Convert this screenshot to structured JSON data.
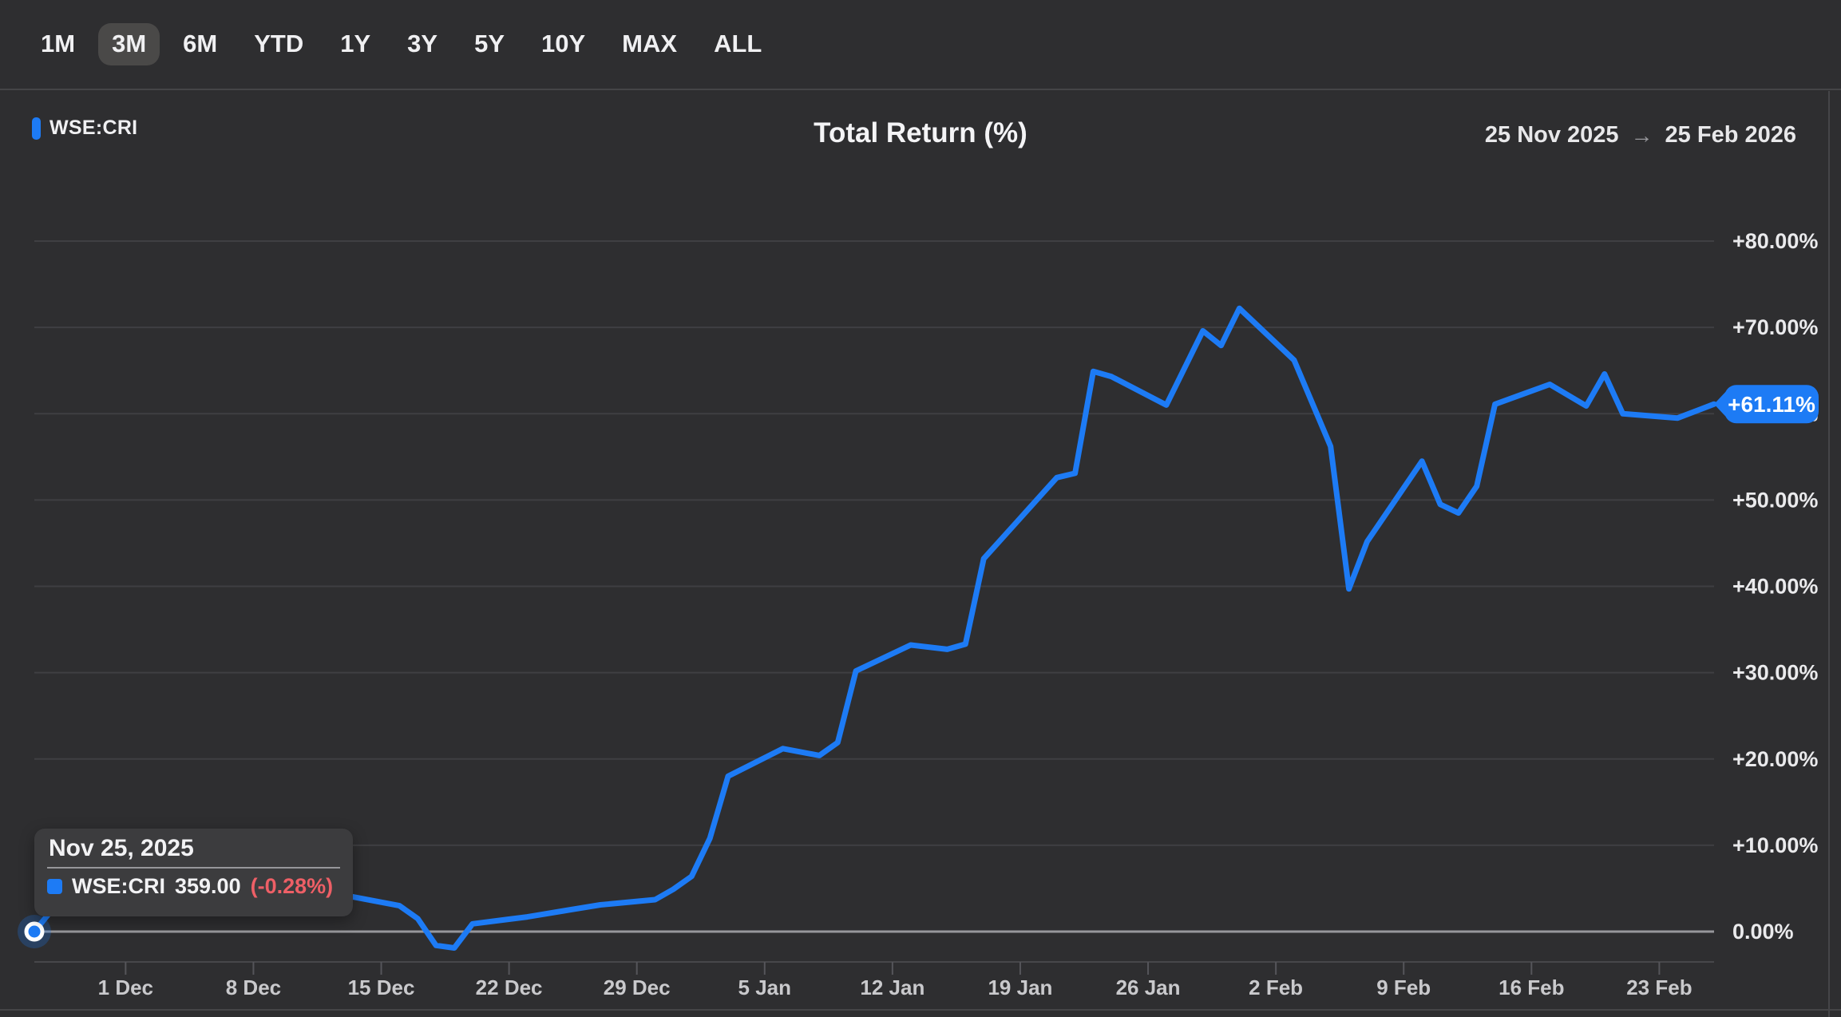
{
  "toolbar": {
    "ranges": [
      "1M",
      "3M",
      "6M",
      "YTD",
      "1Y",
      "3Y",
      "5Y",
      "10Y",
      "MAX",
      "ALL"
    ],
    "selected": "3M"
  },
  "header": {
    "legend_label": "WSE:CRI",
    "title": "Total Return (%)",
    "date_start": "25 Nov 2025",
    "date_end": "25 Feb 2026",
    "arrow_glyph": "→"
  },
  "tooltip": {
    "date": "Nov 25, 2025",
    "series": "WSE:CRI",
    "value": "359.00",
    "change": "(-0.28%)"
  },
  "badge": {
    "label": "+61.11%"
  },
  "colors": {
    "accent": "#1d7bf5",
    "negative": "#ee5f66",
    "grid": "#3f3f42",
    "zero_line": "#97979b",
    "axis": "#47474a"
  },
  "chart_data": {
    "type": "line",
    "title": "Total Return (%)",
    "series_name": "WSE:CRI",
    "x_start_date": "2025-11-25",
    "x_end_date": "2026-02-25",
    "last_value_label": "+61.11%",
    "grid": true,
    "legend_position": "top-left",
    "ylim": [
      -4,
      82
    ],
    "y_ticks": [
      {
        "value": 0,
        "label": "0.00%"
      },
      {
        "value": 10,
        "label": "+10.00%"
      },
      {
        "value": 20,
        "label": "+20.00%"
      },
      {
        "value": 30,
        "label": "+30.00%"
      },
      {
        "value": 40,
        "label": "+40.00%"
      },
      {
        "value": 50,
        "label": "+50.00%"
      },
      {
        "value": 60,
        "label": "+60.00%"
      },
      {
        "value": 70,
        "label": "+70.00%"
      },
      {
        "value": 80,
        "label": "+80.00%"
      }
    ],
    "x_ticks": [
      {
        "date": "2025-12-01",
        "label": "1 Dec"
      },
      {
        "date": "2025-12-08",
        "label": "8 Dec"
      },
      {
        "date": "2025-12-15",
        "label": "15 Dec"
      },
      {
        "date": "2025-12-22",
        "label": "22 Dec"
      },
      {
        "date": "2025-12-29",
        "label": "29 Dec"
      },
      {
        "date": "2026-01-05",
        "label": "5 Jan"
      },
      {
        "date": "2026-01-12",
        "label": "12 Jan"
      },
      {
        "date": "2026-01-19",
        "label": "19 Jan"
      },
      {
        "date": "2026-01-26",
        "label": "26 Jan"
      },
      {
        "date": "2026-02-02",
        "label": "2 Feb"
      },
      {
        "date": "2026-02-09",
        "label": "9 Feb"
      },
      {
        "date": "2026-02-16",
        "label": "16 Feb"
      },
      {
        "date": "2026-02-23",
        "label": "23 Feb"
      }
    ],
    "points": [
      [
        "2025-11-25",
        0.0
      ],
      [
        "2025-11-26",
        2.6
      ],
      [
        "2025-11-27",
        3.9
      ],
      [
        "2025-11-28",
        4.2
      ],
      [
        "2025-12-01",
        4.5
      ],
      [
        "2025-12-02",
        4.3
      ],
      [
        "2025-12-03",
        4.6
      ],
      [
        "2025-12-04",
        4.4
      ],
      [
        "2025-12-05",
        4.7
      ],
      [
        "2025-12-08",
        4.6
      ],
      [
        "2025-12-09",
        4.3
      ],
      [
        "2025-12-10",
        4.5
      ],
      [
        "2025-12-12",
        4.2
      ],
      [
        "2025-12-15",
        3.0
      ],
      [
        "2025-12-16",
        1.5
      ],
      [
        "2025-12-17",
        -1.6
      ],
      [
        "2025-12-18",
        -1.9
      ],
      [
        "2025-12-19",
        0.9
      ],
      [
        "2025-12-22",
        1.7
      ],
      [
        "2025-12-24",
        2.4
      ],
      [
        "2025-12-26",
        3.1
      ],
      [
        "2025-12-29",
        3.7
      ],
      [
        "2025-12-30",
        4.9
      ],
      [
        "2025-12-31",
        6.4
      ],
      [
        "2026-01-01",
        10.8
      ],
      [
        "2026-01-02",
        18.0
      ],
      [
        "2026-01-05",
        21.2
      ],
      [
        "2026-01-07",
        20.4
      ],
      [
        "2026-01-08",
        21.9
      ],
      [
        "2026-01-09",
        30.2
      ],
      [
        "2026-01-12",
        33.2
      ],
      [
        "2026-01-14",
        32.7
      ],
      [
        "2026-01-15",
        33.3
      ],
      [
        "2026-01-16",
        43.2
      ],
      [
        "2026-01-20",
        52.6
      ],
      [
        "2026-01-21",
        53.1
      ],
      [
        "2026-01-22",
        64.9
      ],
      [
        "2026-01-23",
        64.3
      ],
      [
        "2026-01-26",
        61.0
      ],
      [
        "2026-01-28",
        69.6
      ],
      [
        "2026-01-29",
        67.9
      ],
      [
        "2026-01-30",
        72.2
      ],
      [
        "2026-02-02",
        66.2
      ],
      [
        "2026-02-04",
        56.2
      ],
      [
        "2026-02-05",
        39.7
      ],
      [
        "2026-02-06",
        45.2
      ],
      [
        "2026-02-09",
        54.5
      ],
      [
        "2026-02-10",
        49.5
      ],
      [
        "2026-02-11",
        48.5
      ],
      [
        "2026-02-12",
        51.6
      ],
      [
        "2026-02-13",
        61.1
      ],
      [
        "2026-02-16",
        63.4
      ],
      [
        "2026-02-18",
        60.9
      ],
      [
        "2026-02-19",
        64.6
      ],
      [
        "2026-02-20",
        60.0
      ],
      [
        "2026-02-23",
        59.5
      ],
      [
        "2026-02-25",
        61.11
      ]
    ]
  }
}
